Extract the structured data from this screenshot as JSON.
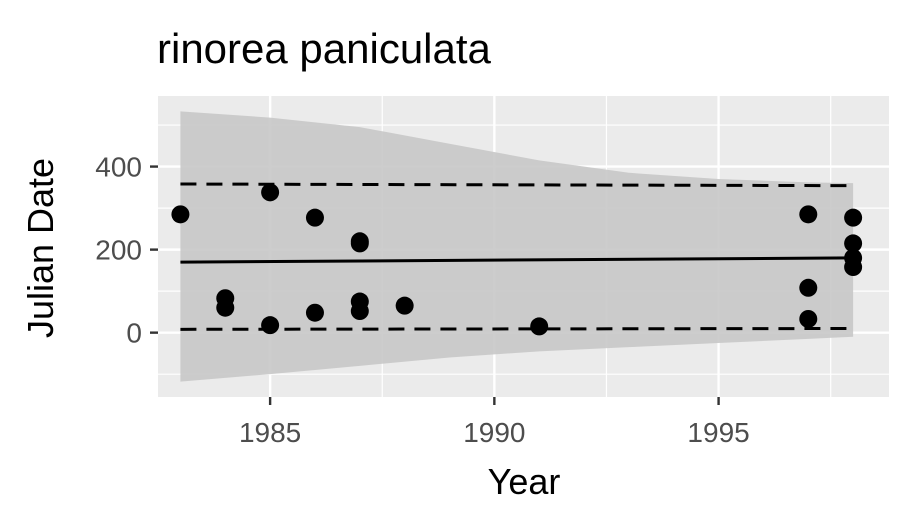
{
  "chart_data": {
    "type": "scatter",
    "title": "rinorea paniculata",
    "xlabel": "Year",
    "ylabel": "Julian Date",
    "xlim": [
      1982.5,
      1998.8
    ],
    "ylim": [
      -155,
      570
    ],
    "x_ticks": [
      1985,
      1990,
      1995
    ],
    "x_tick_labels": [
      "1985",
      "1990",
      "1995"
    ],
    "y_ticks": [
      0,
      200,
      400
    ],
    "y_tick_labels": [
      "0",
      "200",
      "400"
    ],
    "grid": true,
    "legend": "none",
    "points": [
      {
        "x": 1983,
        "y": 285
      },
      {
        "x": 1984,
        "y": 83
      },
      {
        "x": 1984,
        "y": 60
      },
      {
        "x": 1985,
        "y": 338
      },
      {
        "x": 1985,
        "y": 18
      },
      {
        "x": 1986,
        "y": 277
      },
      {
        "x": 1986,
        "y": 48
      },
      {
        "x": 1987,
        "y": 220
      },
      {
        "x": 1987,
        "y": 215
      },
      {
        "x": 1987,
        "y": 75
      },
      {
        "x": 1987,
        "y": 52
      },
      {
        "x": 1988,
        "y": 65
      },
      {
        "x": 1991,
        "y": 15
      },
      {
        "x": 1997,
        "y": 285
      },
      {
        "x": 1997,
        "y": 108
      },
      {
        "x": 1997,
        "y": 33
      },
      {
        "x": 1998,
        "y": 277
      },
      {
        "x": 1998,
        "y": 215
      },
      {
        "x": 1998,
        "y": 180
      },
      {
        "x": 1998,
        "y": 158
      }
    ],
    "fit_line": {
      "x": [
        1983,
        1998
      ],
      "y": [
        170,
        180
      ]
    },
    "upper_dashed": {
      "x": [
        1983,
        1998
      ],
      "y": [
        358,
        354
      ]
    },
    "lower_dashed": {
      "x": [
        1983,
        1998
      ],
      "y": [
        8,
        10
      ]
    },
    "confidence_band": {
      "x": [
        1983,
        1985,
        1987,
        1989,
        1991,
        1993,
        1995,
        1997,
        1998
      ],
      "upper": [
        533,
        518,
        495,
        455,
        415,
        385,
        370,
        362,
        360
      ],
      "lower": [
        -118,
        -100,
        -80,
        -60,
        -45,
        -35,
        -25,
        -15,
        -10
      ]
    },
    "colors": {
      "panel_bg": "#ebebeb",
      "grid": "#ffffff",
      "band": "#c8c8c8",
      "points": "#000000",
      "lines": "#000000"
    }
  }
}
